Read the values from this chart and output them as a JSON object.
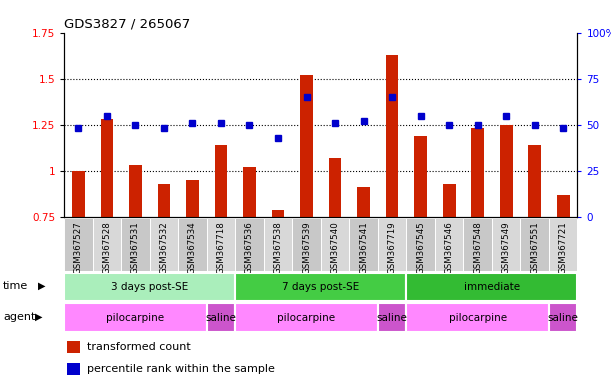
{
  "title": "GDS3827 / 265067",
  "samples": [
    "GSM367527",
    "GSM367528",
    "GSM367531",
    "GSM367532",
    "GSM367534",
    "GSM367718",
    "GSM367536",
    "GSM367538",
    "GSM367539",
    "GSM367540",
    "GSM367541",
    "GSM367719",
    "GSM367545",
    "GSM367546",
    "GSM367548",
    "GSM367549",
    "GSM367551",
    "GSM367721"
  ],
  "transformed_count": [
    1.0,
    1.28,
    1.03,
    0.93,
    0.95,
    1.14,
    1.02,
    0.79,
    1.52,
    1.07,
    0.91,
    1.63,
    1.19,
    0.93,
    1.23,
    1.25,
    1.14,
    0.87
  ],
  "percentile_rank": [
    48,
    55,
    50,
    48,
    51,
    51,
    50,
    43,
    65,
    51,
    52,
    65,
    55,
    50,
    50,
    55,
    50,
    48
  ],
  "time_groups": [
    {
      "label": "3 days post-SE",
      "start": 0,
      "end": 6,
      "color": "#AAEEBB"
    },
    {
      "label": "7 days post-SE",
      "start": 6,
      "end": 12,
      "color": "#44CC44"
    },
    {
      "label": "immediate",
      "start": 12,
      "end": 18,
      "color": "#33BB33"
    }
  ],
  "agent_groups": [
    {
      "label": "pilocarpine",
      "start": 0,
      "end": 5,
      "color": "#FF88FF"
    },
    {
      "label": "saline",
      "start": 5,
      "end": 6,
      "color": "#CC55CC"
    },
    {
      "label": "pilocarpine",
      "start": 6,
      "end": 11,
      "color": "#FF88FF"
    },
    {
      "label": "saline",
      "start": 11,
      "end": 12,
      "color": "#CC55CC"
    },
    {
      "label": "pilocarpine",
      "start": 12,
      "end": 17,
      "color": "#FF88FF"
    },
    {
      "label": "saline",
      "start": 17,
      "end": 18,
      "color": "#CC55CC"
    }
  ],
  "bar_color": "#CC2200",
  "dot_color": "#0000CC",
  "ylim_left": [
    0.75,
    1.75
  ],
  "ylim_right": [
    0,
    100
  ],
  "yticks_left": [
    0.75,
    1.0,
    1.25,
    1.5,
    1.75
  ],
  "yticks_right": [
    0,
    25,
    50,
    75,
    100
  ],
  "ytick_labels_left": [
    "0.75",
    "1",
    "1.25",
    "1.5",
    "1.75"
  ],
  "ytick_labels_right": [
    "0",
    "25",
    "50",
    "75",
    "100%"
  ],
  "hlines": [
    1.0,
    1.25,
    1.5
  ],
  "legend_items": [
    {
      "color": "#CC2200",
      "label": "transformed count"
    },
    {
      "color": "#0000CC",
      "label": "percentile rank within the sample"
    }
  ],
  "tick_bg_color": "#D3D3D3"
}
